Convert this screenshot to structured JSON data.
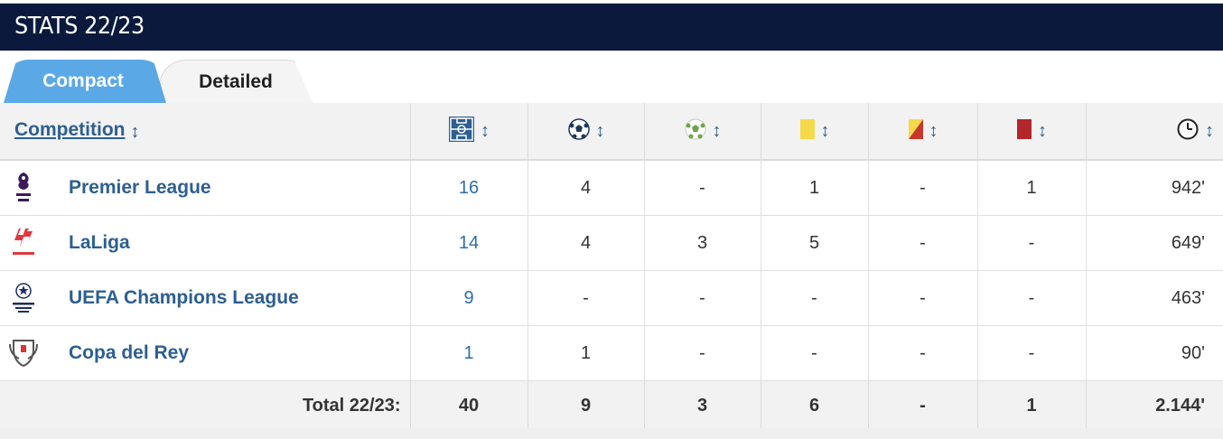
{
  "header": {
    "title": "STATS 22/23"
  },
  "tabs": [
    {
      "label": "Compact",
      "active": true
    },
    {
      "label": "Detailed",
      "active": false
    }
  ],
  "table": {
    "columns": [
      {
        "label": "Competition",
        "icon": ""
      },
      {
        "label": "",
        "icon": "pitch-icon"
      },
      {
        "label": "",
        "icon": "football-icon"
      },
      {
        "label": "",
        "icon": "assist-ball-icon"
      },
      {
        "label": "",
        "icon": "yellow-card-icon"
      },
      {
        "label": "",
        "icon": "second-yellow-card-icon"
      },
      {
        "label": "",
        "icon": "red-card-icon"
      },
      {
        "label": "",
        "icon": "clock-icon"
      }
    ],
    "sort_glyph": "↕",
    "rows": [
      {
        "competition": "Premier League",
        "logo": "premier-league-logo",
        "apps": "16",
        "goals": "4",
        "assists": "-",
        "yellow": "1",
        "second_yellow": "-",
        "red": "1",
        "minutes": "942'"
      },
      {
        "competition": "LaLiga",
        "logo": "laliga-logo",
        "apps": "14",
        "goals": "4",
        "assists": "3",
        "yellow": "5",
        "second_yellow": "-",
        "red": "-",
        "minutes": "649'"
      },
      {
        "competition": "UEFA Champions League",
        "logo": "champions-league-logo",
        "apps": "9",
        "goals": "-",
        "assists": "-",
        "yellow": "-",
        "second_yellow": "-",
        "red": "-",
        "minutes": "463'"
      },
      {
        "competition": "Copa del Rey",
        "logo": "copa-del-rey-logo",
        "apps": "1",
        "goals": "1",
        "assists": "-",
        "yellow": "-",
        "second_yellow": "-",
        "red": "-",
        "minutes": "90'"
      }
    ],
    "total": {
      "label": "Total 22/23:",
      "apps": "40",
      "goals": "9",
      "assists": "3",
      "yellow": "6",
      "second_yellow": "-",
      "red": "1",
      "minutes": "2.144'"
    }
  },
  "colors": {
    "header_bg": "#0b1a3c",
    "tab_active": "#5aa9e6",
    "link": "#2d5f91",
    "yellow_card": "#f5d94a",
    "red_card": "#b3262b"
  }
}
